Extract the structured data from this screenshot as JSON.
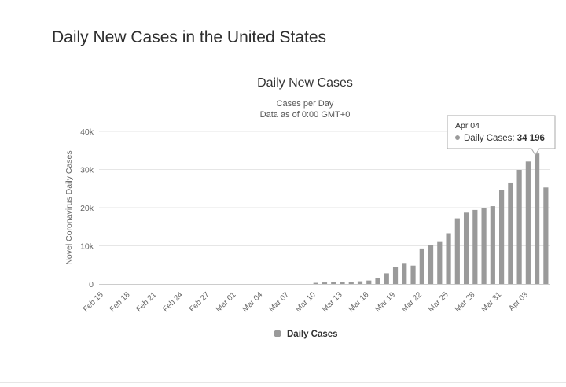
{
  "page": {
    "title": "Daily New Cases in the United States"
  },
  "chart_data": {
    "type": "bar",
    "title": "Daily New Cases",
    "subtitle": [
      "Cases per Day",
      "Data as of 0:00 GMT+0"
    ],
    "ylabel": "Novel Coronavirus Daily Cases",
    "xlabel": "",
    "ylim": [
      0,
      40000
    ],
    "yticks": [
      0,
      10000,
      20000,
      30000,
      40000
    ],
    "ytick_labels": [
      "0",
      "10k",
      "20k",
      "30k",
      "40k"
    ],
    "grid": true,
    "categories": [
      "Feb 15",
      "Feb 16",
      "Feb 17",
      "Feb 18",
      "Feb 19",
      "Feb 20",
      "Feb 21",
      "Feb 22",
      "Feb 23",
      "Feb 24",
      "Feb 25",
      "Feb 26",
      "Feb 27",
      "Feb 28",
      "Feb 29",
      "Mar 01",
      "Mar 02",
      "Mar 03",
      "Mar 04",
      "Mar 05",
      "Mar 06",
      "Mar 07",
      "Mar 08",
      "Mar 09",
      "Mar 10",
      "Mar 11",
      "Mar 12",
      "Mar 13",
      "Mar 14",
      "Mar 15",
      "Mar 16",
      "Mar 17",
      "Mar 18",
      "Mar 19",
      "Mar 20",
      "Mar 21",
      "Mar 22",
      "Mar 23",
      "Mar 24",
      "Mar 25",
      "Mar 26",
      "Mar 27",
      "Mar 28",
      "Mar 29",
      "Mar 30",
      "Mar 31",
      "Apr 01",
      "Apr 02",
      "Apr 03",
      "Apr 04",
      "Apr 05"
    ],
    "x_tick_labels": [
      "Feb 15",
      "Feb 18",
      "Feb 21",
      "Feb 24",
      "Feb 27",
      "Mar 01",
      "Mar 04",
      "Mar 07",
      "Mar 10",
      "Mar 13",
      "Mar 16",
      "Mar 19",
      "Mar 22",
      "Mar 25",
      "Mar 28",
      "Mar 31",
      "Apr 03"
    ],
    "series": [
      {
        "name": "Daily Cases",
        "color": "#9a9a9a",
        "values": [
          0,
          0,
          0,
          0,
          0,
          0,
          0,
          0,
          0,
          0,
          0,
          0,
          0,
          0,
          0,
          0,
          0,
          0,
          0,
          0,
          0,
          0,
          0,
          0,
          300,
          400,
          450,
          500,
          600,
          700,
          900,
          1500,
          2800,
          4500,
          5500,
          4800,
          9300,
          10300,
          11000,
          13300,
          17200,
          18700,
          19400,
          19900,
          20400,
          24700,
          26400,
          29900,
          32100,
          34196,
          25300
        ]
      }
    ],
    "legend": {
      "position": "bottom-center"
    },
    "tooltip": {
      "category": "Apr 04",
      "series": "Daily Cases",
      "label": "Daily Cases:",
      "value_text": "34 196"
    }
  }
}
